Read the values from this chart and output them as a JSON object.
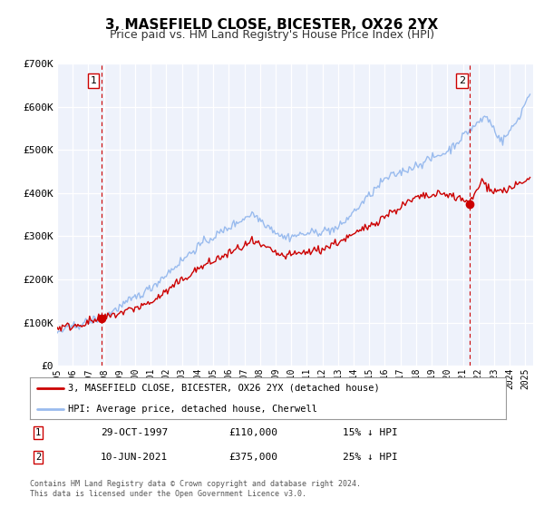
{
  "title": "3, MASEFIELD CLOSE, BICESTER, OX26 2YX",
  "subtitle": "Price paid vs. HM Land Registry's House Price Index (HPI)",
  "title_fontsize": 11,
  "subtitle_fontsize": 9,
  "background_color": "#ffffff",
  "plot_bg_color": "#eef2fb",
  "grid_color": "#ffffff",
  "ylim": [
    0,
    700000
  ],
  "yticks": [
    0,
    100000,
    200000,
    300000,
    400000,
    500000,
    600000,
    700000
  ],
  "ytick_labels": [
    "£0",
    "£100K",
    "£200K",
    "£300K",
    "£400K",
    "£500K",
    "£600K",
    "£700K"
  ],
  "xmin": 1995.0,
  "xmax": 2025.5,
  "xticks": [
    1995,
    1996,
    1997,
    1998,
    1999,
    2000,
    2001,
    2002,
    2003,
    2004,
    2005,
    2006,
    2007,
    2008,
    2009,
    2010,
    2011,
    2012,
    2013,
    2014,
    2015,
    2016,
    2017,
    2018,
    2019,
    2020,
    2021,
    2022,
    2023,
    2024,
    2025
  ],
  "sale1_x": 1997.83,
  "sale1_y": 110000,
  "sale1_label": "1",
  "sale1_date": "29-OCT-1997",
  "sale1_price": "£110,000",
  "sale1_hpi": "15% ↓ HPI",
  "sale2_x": 2021.44,
  "sale2_y": 375000,
  "sale2_label": "2",
  "sale2_date": "10-JUN-2021",
  "sale2_price": "£375,000",
  "sale2_hpi": "25% ↓ HPI",
  "red_line_color": "#cc0000",
  "blue_line_color": "#99bbee",
  "sale_dot_color": "#cc0000",
  "vline_color": "#cc0000",
  "legend_label_red": "3, MASEFIELD CLOSE, BICESTER, OX26 2YX (detached house)",
  "legend_label_blue": "HPI: Average price, detached house, Cherwell",
  "footer1": "Contains HM Land Registry data © Crown copyright and database right 2024.",
  "footer2": "This data is licensed under the Open Government Licence v3.0."
}
